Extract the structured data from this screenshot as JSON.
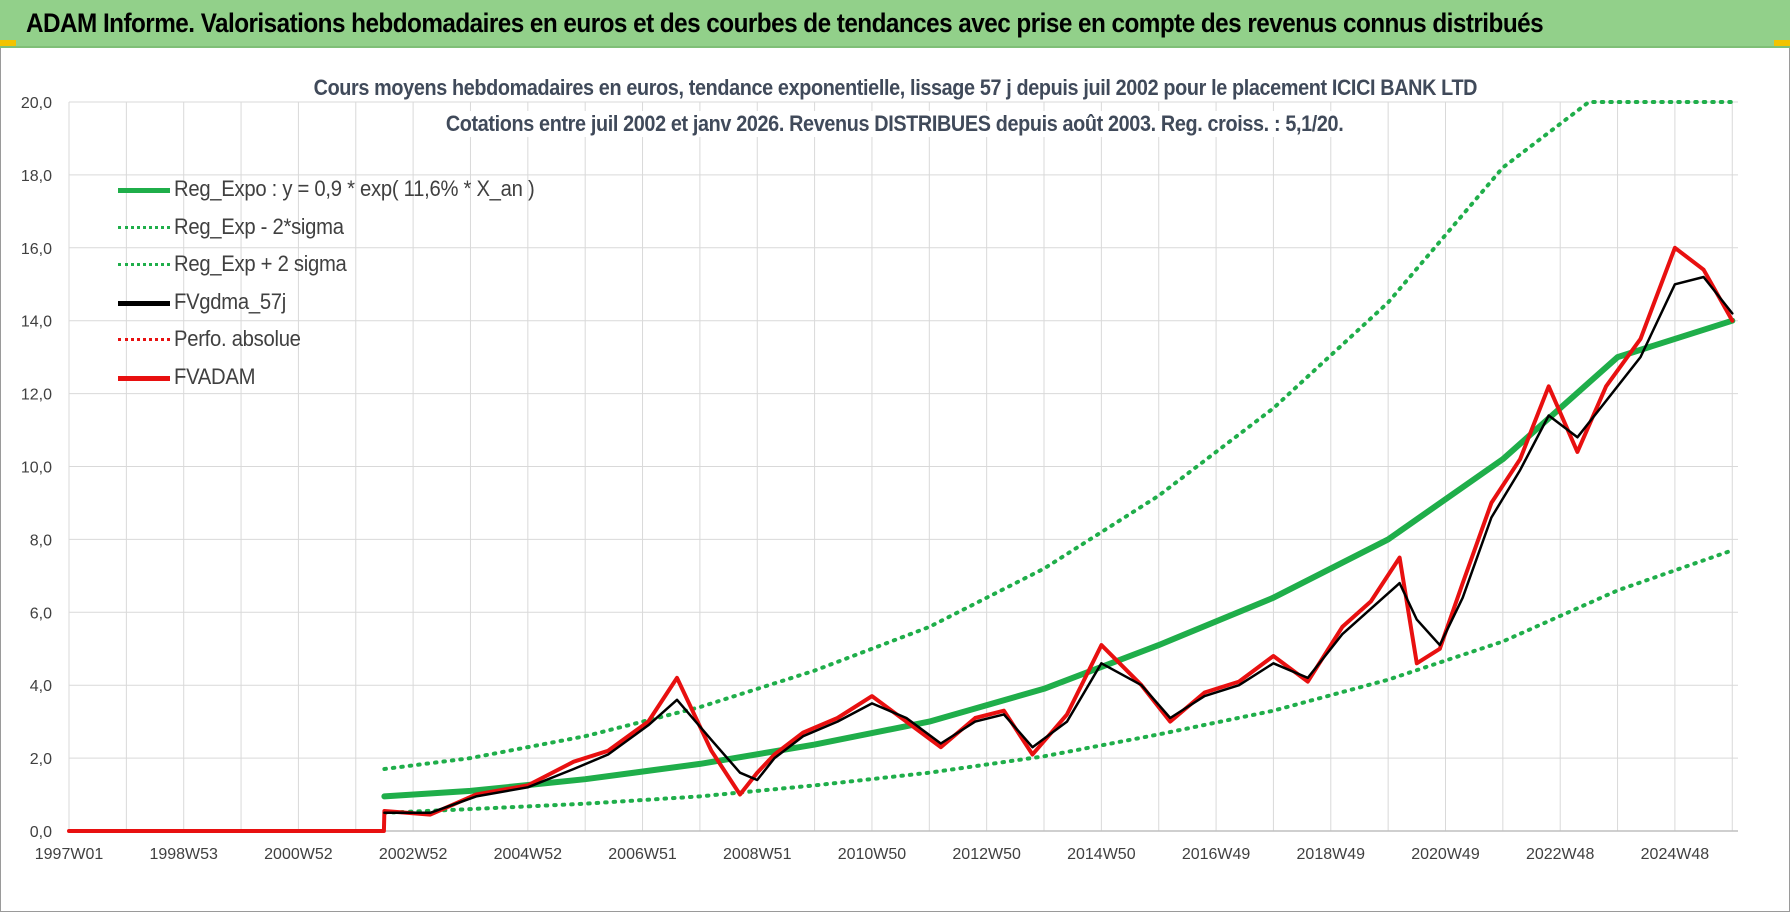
{
  "header": {
    "title": "ADAM Informe. Valorisations hebdomadaires en euros et des courbes de tendances avec prise en compte des revenus connus distribués"
  },
  "colors": {
    "banner": "#92d08a",
    "reg_expo": "#1fae4a",
    "sigma": "#1fae4a",
    "fvgdma": "#000000",
    "perfo": "#e81010",
    "fvadam": "#e81010",
    "grid": "#d9d9d9",
    "corner_marker": "#f2c300"
  },
  "chart_data": {
    "type": "line",
    "title": "Cours moyens hebdomadaires en euros, tendance exponentielle, lissage 57 j depuis juil 2002 pour le placement ICICI BANK LTD",
    "subtitle": "Cotations entre juil 2002 et janv 2026. Revenus DISTRIBUES depuis août 2003. Reg. croiss. : 5,1/20.",
    "xlabel": "",
    "ylabel": "",
    "x_range": [
      1997.0,
      2026.1
    ],
    "ylim": [
      0,
      20
    ],
    "y_ticks": [
      0,
      2,
      4,
      6,
      8,
      10,
      12,
      14,
      16,
      18,
      20
    ],
    "y_tick_labels": [
      "0,0",
      "2,0",
      "4,0",
      "6,0",
      "8,0",
      "10,0",
      "12,0",
      "14,0",
      "16,0",
      "18,0",
      "20,0"
    ],
    "x_tick_labels": [
      {
        "label": "1997W01",
        "x": 1997.0
      },
      {
        "label": "1998W53",
        "x": 1999.0
      },
      {
        "label": "2000W52",
        "x": 2001.0
      },
      {
        "label": "2002W52",
        "x": 2003.0
      },
      {
        "label": "2004W52",
        "x": 2005.0
      },
      {
        "label": "2006W51",
        "x": 2007.0
      },
      {
        "label": "2008W51",
        "x": 2009.0
      },
      {
        "label": "2010W50",
        "x": 2011.0
      },
      {
        "label": "2012W50",
        "x": 2013.0
      },
      {
        "label": "2014W50",
        "x": 2015.0
      },
      {
        "label": "2016W49",
        "x": 2017.0
      },
      {
        "label": "2018W49",
        "x": 2019.0
      },
      {
        "label": "2020W49",
        "x": 2021.0
      },
      {
        "label": "2022W48",
        "x": 2023.0
      },
      {
        "label": "2024W48",
        "x": 2025.0
      }
    ],
    "grid": true,
    "legend_position": "top-left",
    "series": [
      {
        "name": "Reg_Expo : y = 0,9 * exp( 11,6% *  X_an )",
        "style": "solid-thick",
        "x": [
          2002.5,
          2004,
          2006,
          2008,
          2010,
          2012,
          2014,
          2016,
          2018,
          2020,
          2022,
          2024,
          2026
        ],
        "y": [
          0.95,
          1.1,
          1.42,
          1.84,
          2.37,
          3.0,
          3.9,
          5.1,
          6.4,
          8.0,
          10.2,
          13.0,
          14.0
        ]
      },
      {
        "name": "Reg_Exp - 2*sigma",
        "style": "dotted",
        "x": [
          2002.5,
          2004,
          2006,
          2008,
          2010,
          2012,
          2014,
          2016,
          2018,
          2020,
          2022,
          2024,
          2026
        ],
        "y": [
          0.5,
          0.6,
          0.75,
          0.95,
          1.25,
          1.6,
          2.05,
          2.65,
          3.3,
          4.15,
          5.2,
          6.6,
          7.7
        ]
      },
      {
        "name": "Reg_Exp + 2 sigma",
        "style": "dotted",
        "x": [
          2002.5,
          2004,
          2006,
          2008,
          2010,
          2012,
          2014,
          2016,
          2018,
          2020,
          2022,
          2023.5,
          2024,
          2026
        ],
        "y": [
          1.7,
          2.0,
          2.6,
          3.4,
          4.4,
          5.6,
          7.2,
          9.2,
          11.6,
          14.5,
          18.2,
          20.0,
          20.0,
          20.0
        ]
      },
      {
        "name": "FVgdma_57j",
        "style": "solid",
        "x": [
          2002.5,
          2003.3,
          2004.1,
          2005.0,
          2005.8,
          2006.4,
          2007.1,
          2007.6,
          2008.2,
          2008.7,
          2009.0,
          2009.3,
          2009.8,
          2010.4,
          2011.0,
          2011.6,
          2012.2,
          2012.8,
          2013.3,
          2013.8,
          2014.4,
          2015.0,
          2015.7,
          2016.2,
          2016.8,
          2017.4,
          2018.0,
          2018.6,
          2019.2,
          2019.7,
          2020.2,
          2020.5,
          2020.9,
          2021.3,
          2021.8,
          2022.3,
          2022.8,
          2023.3,
          2023.8,
          2024.4,
          2025.0,
          2025.5,
          2026.0
        ],
        "y": [
          0.5,
          0.5,
          0.95,
          1.2,
          1.7,
          2.1,
          2.9,
          3.6,
          2.5,
          1.6,
          1.4,
          2.0,
          2.6,
          3.0,
          3.5,
          3.1,
          2.4,
          3.0,
          3.2,
          2.3,
          3.0,
          4.6,
          4.0,
          3.1,
          3.7,
          4.0,
          4.6,
          4.2,
          5.4,
          6.1,
          6.8,
          5.8,
          5.1,
          6.4,
          8.6,
          9.9,
          11.4,
          10.8,
          11.8,
          13.0,
          15.0,
          15.2,
          14.2
        ]
      },
      {
        "name": "Perfo. absolue",
        "style": "dotted",
        "x": [],
        "y": []
      },
      {
        "name": "FVADAM",
        "style": "solid-thick",
        "x": [
          1997.0,
          2002.49,
          2002.5,
          2003.3,
          2004.1,
          2005.0,
          2005.8,
          2006.4,
          2007.1,
          2007.6,
          2008.2,
          2008.7,
          2009.0,
          2009.3,
          2009.8,
          2010.4,
          2011.0,
          2011.6,
          2012.2,
          2012.8,
          2013.3,
          2013.8,
          2014.4,
          2015.0,
          2015.7,
          2016.2,
          2016.8,
          2017.4,
          2018.0,
          2018.6,
          2019.2,
          2019.7,
          2020.2,
          2020.5,
          2020.9,
          2021.3,
          2021.8,
          2022.3,
          2022.8,
          2023.3,
          2023.8,
          2024.4,
          2025.0,
          2025.5,
          2026.0
        ],
        "y": [
          0.0,
          0.0,
          0.55,
          0.45,
          1.0,
          1.25,
          1.9,
          2.2,
          3.0,
          4.2,
          2.2,
          1.0,
          1.6,
          2.1,
          2.7,
          3.1,
          3.7,
          3.0,
          2.3,
          3.1,
          3.3,
          2.1,
          3.2,
          5.1,
          4.0,
          3.0,
          3.8,
          4.1,
          4.8,
          4.1,
          5.6,
          6.3,
          7.5,
          4.6,
          5.0,
          6.8,
          9.0,
          10.2,
          12.2,
          10.4,
          12.2,
          13.5,
          16.0,
          15.4,
          14.0
        ]
      }
    ]
  }
}
